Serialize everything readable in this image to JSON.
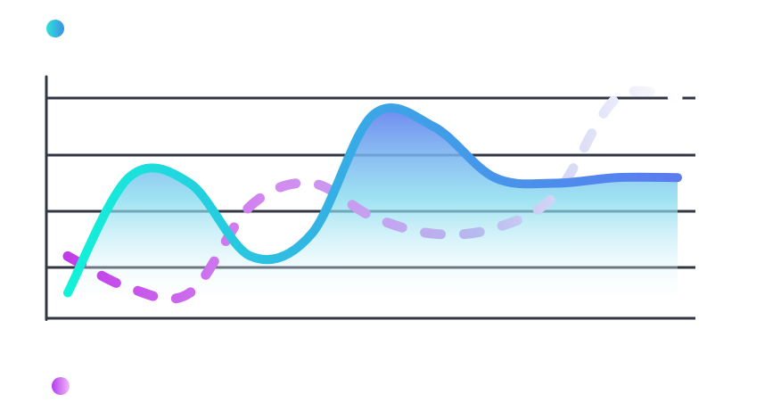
{
  "chart_data": {
    "type": "line",
    "title": "",
    "xlabel": "",
    "ylabel": "",
    "grid": true,
    "x": [
      0,
      1,
      2,
      3,
      4,
      5,
      6,
      7,
      8,
      9,
      10
    ],
    "xlim": [
      0,
      10
    ],
    "ylim": [
      0,
      4
    ],
    "series": [
      {
        "key": "solid",
        "style": "solid-area",
        "colors": [
          "#12f2d8",
          "#3aa6e6",
          "#5b7bef"
        ],
        "values": [
          0.5,
          2.6,
          2.5,
          1.2,
          1.6,
          3.7,
          3.5,
          2.6,
          2.5,
          2.6,
          2.6
        ]
      },
      {
        "key": "dashed",
        "style": "dashed",
        "colors": [
          "#c13ce8",
          "#d38af0",
          "#b6b9ee",
          "#ffffff"
        ],
        "values": [
          1.2,
          0.6,
          0.5,
          2.1,
          2.5,
          1.9,
          1.6,
          1.7,
          2.3,
          4.0,
          4.0
        ]
      }
    ],
    "legend": [
      {
        "marker": "gradient-dot",
        "color_from": "#2fe3d8",
        "color_to": "#3d8fe6",
        "series": "solid"
      },
      {
        "marker": "gradient-dot",
        "color_from": "#b23cf0",
        "color_to": "#f3b8f6",
        "series": "dashed"
      }
    ]
  }
}
